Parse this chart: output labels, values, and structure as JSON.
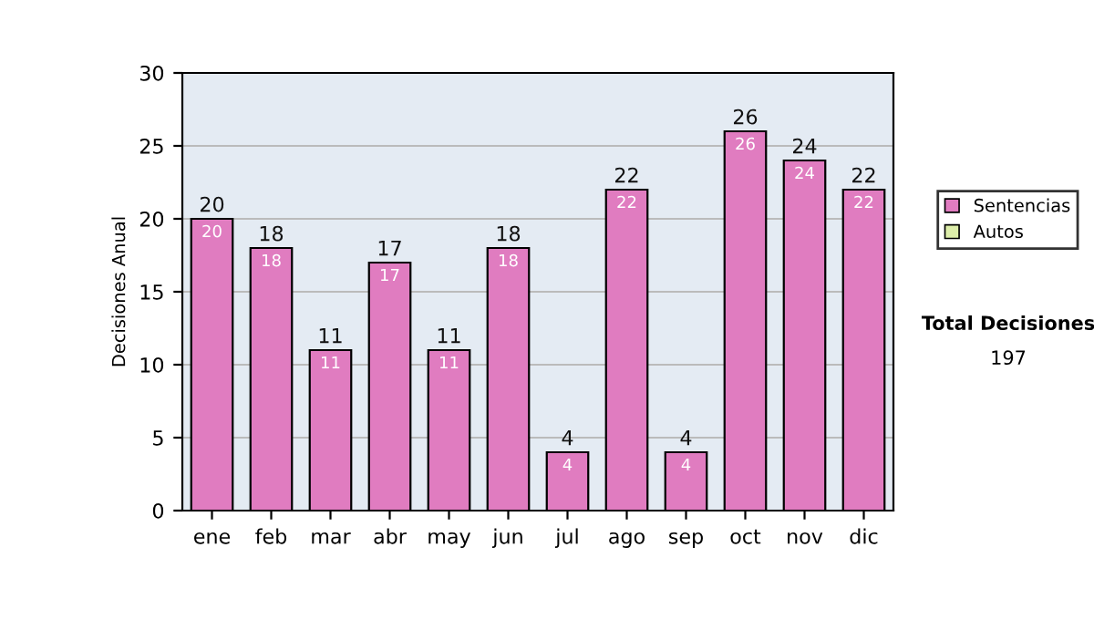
{
  "chart_data": {
    "type": "bar",
    "stacked": true,
    "ylabel": "Decisiones Anual",
    "categories": [
      "ene",
      "feb",
      "mar",
      "abr",
      "may",
      "jun",
      "jul",
      "ago",
      "sep",
      "oct",
      "nov",
      "dic"
    ],
    "series": [
      {
        "name": "Sentencias",
        "color": "#e07cc0",
        "values": [
          20,
          18,
          11,
          17,
          11,
          18,
          4,
          22,
          4,
          26,
          24,
          22
        ],
        "value_labels": [
          "20",
          "18",
          "11",
          "17",
          "11",
          "18",
          "4",
          "22",
          "4",
          "26",
          "24",
          "22"
        ]
      },
      {
        "name": "Autos",
        "color": "#ddeeaa",
        "values": [
          null,
          null,
          null,
          null,
          null,
          null,
          null,
          null,
          null,
          null,
          null,
          null
        ]
      }
    ],
    "totals": [
      "20",
      "18",
      "11",
      "17",
      "11",
      "18",
      "4",
      "22",
      "4",
      "26",
      "24",
      "22"
    ],
    "ylim": [
      0,
      30
    ],
    "yticks": [
      0,
      5,
      10,
      15,
      20,
      25,
      30
    ],
    "grid": "y",
    "legend": "right",
    "annotations": [
      "Total Decisiones",
      "197"
    ]
  }
}
